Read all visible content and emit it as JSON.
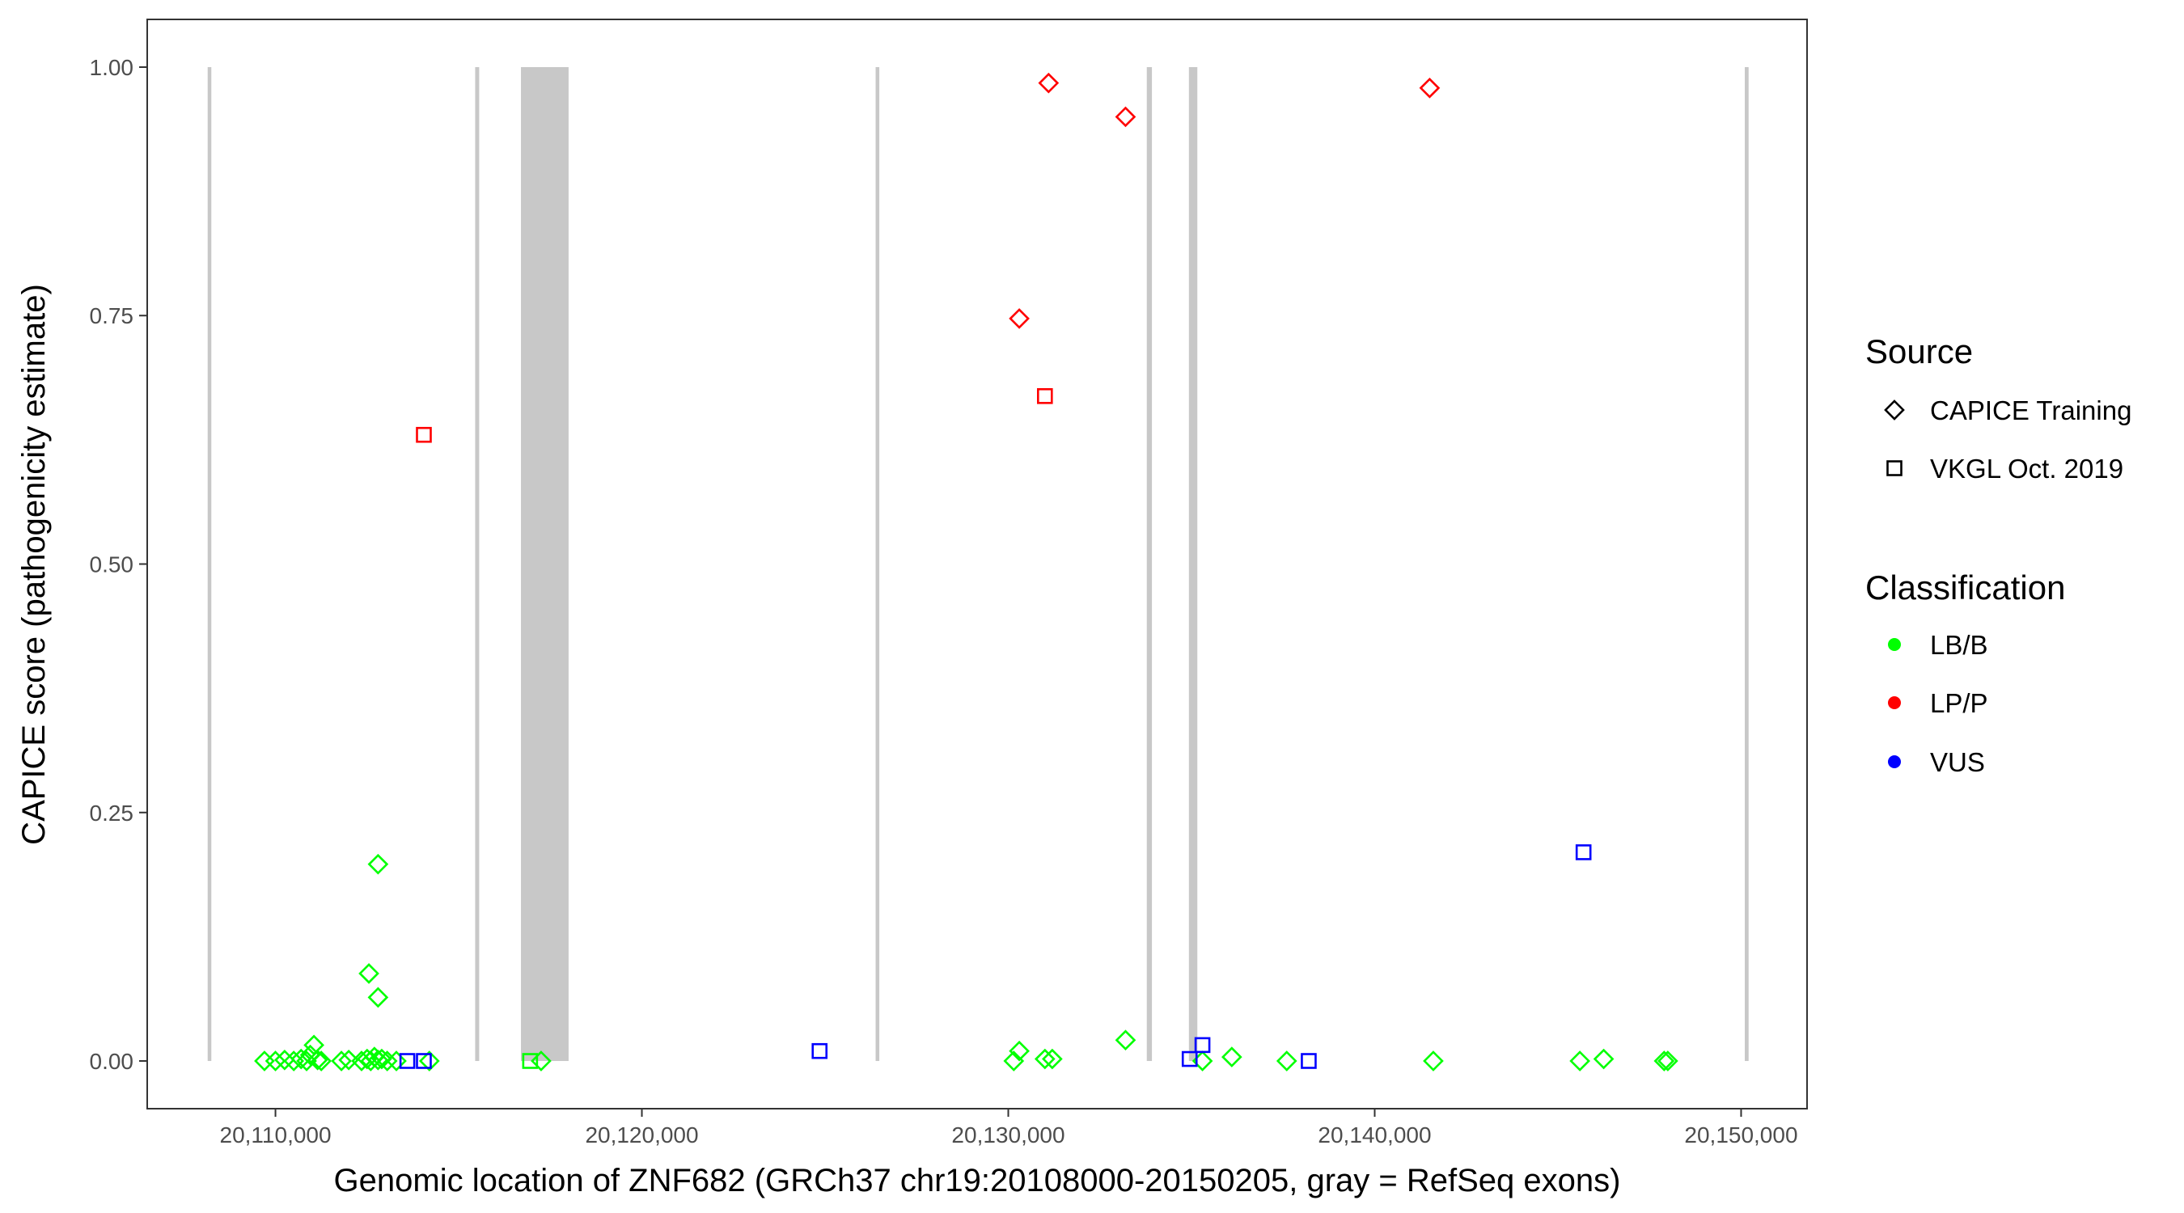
{
  "chart_data": {
    "type": "scatter",
    "xlabel": "Genomic location of ZNF682 (GRCh37 chr19:20108000-20150205, gray = RefSeq exons)",
    "ylabel": "CAPICE score (pathogenicity estimate)",
    "xlim": [
      20106500,
      20151800
    ],
    "ylim": [
      -0.048,
      1.048
    ],
    "x_ticks": [
      20110000,
      20120000,
      20130000,
      20140000,
      20150000
    ],
    "x_tick_labels": [
      "20,110,000",
      "20,120,000",
      "20,130,000",
      "20,140,000",
      "20,150,000"
    ],
    "y_ticks": [
      0.0,
      0.25,
      0.5,
      0.75,
      1.0
    ],
    "y_tick_labels": [
      "0.00",
      "0.25",
      "0.50",
      "0.75",
      "1.00"
    ],
    "grid": false,
    "legend_position": "right",
    "exons": [
      [
        20108150,
        20108250
      ],
      [
        20115450,
        20115560
      ],
      [
        20116700,
        20118000
      ],
      [
        20126380,
        20126480
      ],
      [
        20133780,
        20133920
      ],
      [
        20134930,
        20135160
      ],
      [
        20150100,
        20150205
      ]
    ],
    "legend": {
      "source_title": "Source",
      "source_items": [
        {
          "shape": "diamond",
          "label": "CAPICE Training"
        },
        {
          "shape": "square",
          "label": "VKGL Oct. 2019"
        }
      ],
      "class_title": "Classification",
      "class_items": [
        {
          "key": "LB/B",
          "label": "LB/B",
          "color": "#00ff00"
        },
        {
          "key": "LP/P",
          "label": "LP/P",
          "color": "#ff0000"
        },
        {
          "key": "VUS",
          "label": "VUS",
          "color": "#0000ff"
        }
      ]
    },
    "points": [
      {
        "x": 20109700,
        "y": 0.0,
        "source": "CAPICE Training",
        "class": "LB/B"
      },
      {
        "x": 20110000,
        "y": 0.0,
        "source": "CAPICE Training",
        "class": "LB/B"
      },
      {
        "x": 20110250,
        "y": 0.001,
        "source": "CAPICE Training",
        "class": "LB/B"
      },
      {
        "x": 20110500,
        "y": 0.0,
        "source": "CAPICE Training",
        "class": "LB/B"
      },
      {
        "x": 20110700,
        "y": 0.002,
        "source": "CAPICE Training",
        "class": "LB/B"
      },
      {
        "x": 20110850,
        "y": 0.0,
        "source": "CAPICE Training",
        "class": "LB/B"
      },
      {
        "x": 20110950,
        "y": 0.006,
        "source": "CAPICE Training",
        "class": "LB/B"
      },
      {
        "x": 20111050,
        "y": 0.016,
        "source": "CAPICE Training",
        "class": "LB/B"
      },
      {
        "x": 20111150,
        "y": 0.001,
        "source": "CAPICE Training",
        "class": "LB/B"
      },
      {
        "x": 20111250,
        "y": 0.0,
        "source": "CAPICE Training",
        "class": "LB/B"
      },
      {
        "x": 20111800,
        "y": 0.0,
        "source": "CAPICE Training",
        "class": "LB/B"
      },
      {
        "x": 20112000,
        "y": 0.001,
        "source": "CAPICE Training",
        "class": "LB/B"
      },
      {
        "x": 20112350,
        "y": 0.0,
        "source": "CAPICE Training",
        "class": "LB/B"
      },
      {
        "x": 20112500,
        "y": 0.002,
        "source": "CAPICE Training",
        "class": "LB/B"
      },
      {
        "x": 20112600,
        "y": 0.0,
        "source": "CAPICE Training",
        "class": "LB/B"
      },
      {
        "x": 20112700,
        "y": 0.004,
        "source": "CAPICE Training",
        "class": "LB/B"
      },
      {
        "x": 20112800,
        "y": 0.001,
        "source": "CAPICE Training",
        "class": "LB/B"
      },
      {
        "x": 20112900,
        "y": 0.002,
        "source": "CAPICE Training",
        "class": "LB/B"
      },
      {
        "x": 20113050,
        "y": 0.0,
        "source": "CAPICE Training",
        "class": "LB/B"
      },
      {
        "x": 20113300,
        "y": 0.0,
        "source": "CAPICE Training",
        "class": "LB/B"
      },
      {
        "x": 20112550,
        "y": 0.088,
        "source": "CAPICE Training",
        "class": "LB/B"
      },
      {
        "x": 20112800,
        "y": 0.198,
        "source": "CAPICE Training",
        "class": "LB/B"
      },
      {
        "x": 20112800,
        "y": 0.064,
        "source": "CAPICE Training",
        "class": "LB/B"
      },
      {
        "x": 20114200,
        "y": 0.0,
        "source": "CAPICE Training",
        "class": "LB/B"
      },
      {
        "x": 20116950,
        "y": 0.0,
        "source": "VKGL Oct. 2019",
        "class": "LB/B"
      },
      {
        "x": 20117250,
        "y": 0.0,
        "source": "CAPICE Training",
        "class": "LB/B"
      },
      {
        "x": 20113600,
        "y": 0.0,
        "source": "VKGL Oct. 2019",
        "class": "VUS"
      },
      {
        "x": 20114050,
        "y": 0.0,
        "source": "VKGL Oct. 2019",
        "class": "VUS"
      },
      {
        "x": 20114050,
        "y": 0.63,
        "source": "VKGL Oct. 2019",
        "class": "LP/P"
      },
      {
        "x": 20124850,
        "y": 0.01,
        "source": "VKGL Oct. 2019",
        "class": "VUS"
      },
      {
        "x": 20130150,
        "y": 0.0,
        "source": "CAPICE Training",
        "class": "LB/B"
      },
      {
        "x": 20130300,
        "y": 0.01,
        "source": "CAPICE Training",
        "class": "LB/B"
      },
      {
        "x": 20131000,
        "y": 0.002,
        "source": "CAPICE Training",
        "class": "LB/B"
      },
      {
        "x": 20131200,
        "y": 0.002,
        "source": "CAPICE Training",
        "class": "LB/B"
      },
      {
        "x": 20133200,
        "y": 0.021,
        "source": "CAPICE Training",
        "class": "LB/B"
      },
      {
        "x": 20135300,
        "y": 0.0,
        "source": "CAPICE Training",
        "class": "LB/B"
      },
      {
        "x": 20136100,
        "y": 0.004,
        "source": "CAPICE Training",
        "class": "LB/B"
      },
      {
        "x": 20137600,
        "y": 0.0,
        "source": "CAPICE Training",
        "class": "LB/B"
      },
      {
        "x": 20141600,
        "y": 0.0,
        "source": "CAPICE Training",
        "class": "LB/B"
      },
      {
        "x": 20145600,
        "y": 0.0,
        "source": "CAPICE Training",
        "class": "LB/B"
      },
      {
        "x": 20146250,
        "y": 0.002,
        "source": "CAPICE Training",
        "class": "LB/B"
      },
      {
        "x": 20147900,
        "y": 0.0,
        "source": "CAPICE Training",
        "class": "LB/B"
      },
      {
        "x": 20148000,
        "y": 0.0,
        "source": "CAPICE Training",
        "class": "LB/B"
      },
      {
        "x": 20130300,
        "y": 0.747,
        "source": "CAPICE Training",
        "class": "LP/P"
      },
      {
        "x": 20131100,
        "y": 0.984,
        "source": "CAPICE Training",
        "class": "LP/P"
      },
      {
        "x": 20133200,
        "y": 0.95,
        "source": "CAPICE Training",
        "class": "LP/P"
      },
      {
        "x": 20141500,
        "y": 0.979,
        "source": "CAPICE Training",
        "class": "LP/P"
      },
      {
        "x": 20131000,
        "y": 0.669,
        "source": "VKGL Oct. 2019",
        "class": "LP/P"
      },
      {
        "x": 20134950,
        "y": 0.002,
        "source": "VKGL Oct. 2019",
        "class": "VUS"
      },
      {
        "x": 20135300,
        "y": 0.016,
        "source": "VKGL Oct. 2019",
        "class": "VUS"
      },
      {
        "x": 20138200,
        "y": 0.0,
        "source": "VKGL Oct. 2019",
        "class": "VUS"
      },
      {
        "x": 20145700,
        "y": 0.21,
        "source": "VKGL Oct. 2019",
        "class": "VUS"
      }
    ]
  }
}
